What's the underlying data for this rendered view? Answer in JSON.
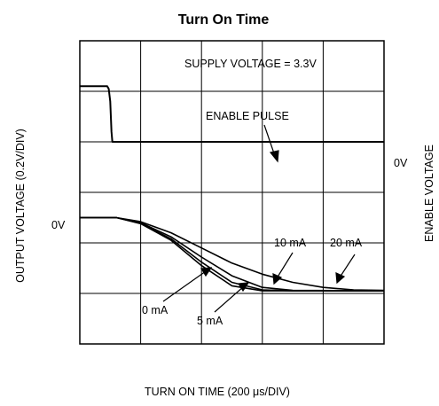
{
  "chart_data": {
    "type": "line",
    "title": "Turn On Time",
    "xlabel": "TURN ON TIME (200 μs/DIV)",
    "ylabel_left": "OUTPUT VOLTAGE (0.2V/DIV)",
    "ylabel_right": "ENABLE VOLTAGE",
    "x_divisions": 5,
    "y_divisions": 6,
    "x_range_us": [
      0,
      1000
    ],
    "grid": true,
    "annotations": {
      "supply": "SUPPLY VOLTAGE = 3.3V",
      "enable_pulse": "ENABLE PULSE",
      "enable_zero": "0V",
      "output_zero": "0V",
      "label_0mA": "0 mA",
      "label_5mA": "5 mA",
      "label_10mA": "10 mA",
      "label_20mA": "20 mA"
    },
    "enable_pulse": {
      "x_us": [
        0,
        90,
        95,
        100,
        104,
        107,
        1000
      ],
      "y_div": [
        2.6,
        2.6,
        2.55,
        2.3,
        1.7,
        1.5,
        1.5
      ]
    },
    "series": [
      {
        "name": "0 mA",
        "x_us": [
          0,
          120,
          200,
          300,
          400,
          500,
          600,
          700,
          1000
        ],
        "y_div": [
          0,
          0,
          -0.12,
          -0.45,
          -0.95,
          -1.35,
          -1.45,
          -1.45,
          -1.45
        ]
      },
      {
        "name": "5 mA",
        "x_us": [
          0,
          120,
          200,
          300,
          400,
          500,
          600,
          700,
          1000
        ],
        "y_div": [
          0,
          0,
          -0.11,
          -0.42,
          -0.88,
          -1.28,
          -1.43,
          -1.45,
          -1.45
        ]
      },
      {
        "name": "10 mA",
        "x_us": [
          0,
          120,
          200,
          300,
          400,
          500,
          600,
          700,
          1000
        ],
        "y_div": [
          0,
          0,
          -0.1,
          -0.38,
          -0.78,
          -1.15,
          -1.38,
          -1.44,
          -1.45
        ]
      },
      {
        "name": "20 mA",
        "x_us": [
          0,
          120,
          200,
          300,
          400,
          500,
          600,
          700,
          800,
          900,
          1000
        ],
        "y_div": [
          0,
          0,
          -0.08,
          -0.3,
          -0.6,
          -0.9,
          -1.12,
          -1.28,
          -1.38,
          -1.43,
          -1.44
        ]
      }
    ]
  }
}
